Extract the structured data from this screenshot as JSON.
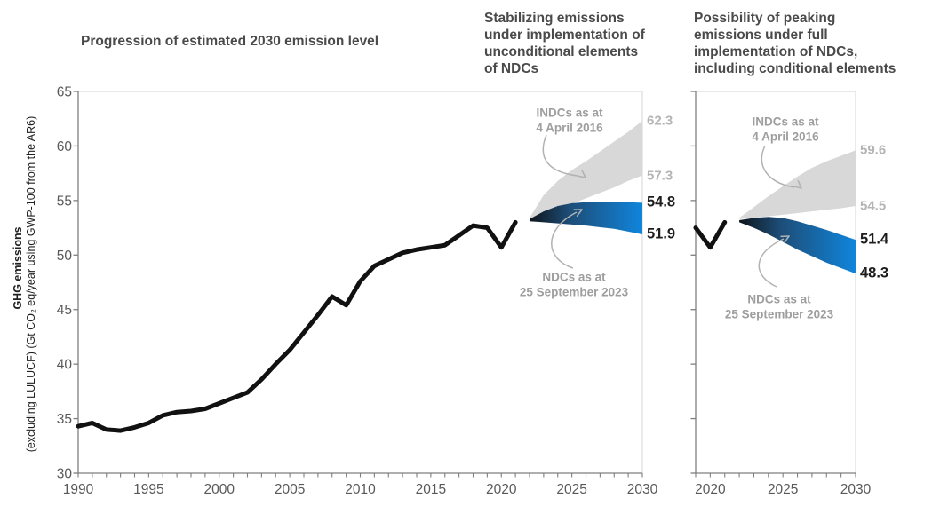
{
  "headers": {
    "main": "Progression of estimated 2030 emission level",
    "unconditional": "Stabilizing emissions\nunder implementation of\nunconditional elements\nof NDCs",
    "conditional": "Possibility of peaking\nemissions under full\nimplementation of NDCs,\nincluding conditional elements"
  },
  "y_axis": {
    "label_bold": "GHG emissions",
    "label_detail": "(excluding LULUCF) (Gt CO₂ eq/year using GWP-100 from the AR6)",
    "ticks": [
      30,
      35,
      40,
      45,
      50,
      55,
      60,
      65
    ],
    "range": [
      30,
      65
    ]
  },
  "colors": {
    "history_line": "#111111",
    "gray_fan": "#d8d8d8",
    "blue_gradient": [
      "#0e141a",
      "#1d4d77",
      "#1085dc"
    ],
    "axis": "#7f7f7f",
    "border_light": "#dcdcdc",
    "tick_label": "#595959",
    "header_text": "#4a4a4a",
    "annotation_text": "#9e9e9e",
    "value_label_gray": "#b4b4b4",
    "value_label_dark": "#1d1d1d",
    "arrow": "#b2b2b2"
  },
  "chart_data": {
    "type": "line",
    "ylabel": "GHG emissions (excluding LULUCF) (Gt CO₂ eq/year using GWP-100 from the AR6)",
    "ylim": [
      30,
      65
    ],
    "grid": false,
    "panels": [
      {
        "name": "progression-panel",
        "x_range": [
          1990,
          2030
        ],
        "x_tick_labels": [
          1990,
          1995,
          2000,
          2005,
          2010,
          2015,
          2020,
          2025,
          2030
        ],
        "show_y_tick_labels": true,
        "historical": {
          "start_year": 1990,
          "values": [
            34.3,
            34.6,
            34.0,
            33.9,
            34.2,
            34.6,
            35.3,
            35.6,
            35.7,
            35.9,
            36.4,
            36.9,
            37.4,
            38.6,
            40.0,
            41.3,
            42.9,
            44.5,
            46.2,
            45.4,
            47.6,
            49.0,
            49.6,
            50.2,
            50.5,
            50.7,
            50.9,
            51.8,
            52.7,
            52.5,
            50.7,
            53.0
          ]
        },
        "fan_years": [
          2022,
          2023,
          2024,
          2025,
          2026,
          2027,
          2028,
          2029,
          2030
        ],
        "fans": [
          {
            "name": "indc-2016",
            "style": "gray",
            "top": [
              53.4,
              55.5,
              56.8,
              57.8,
              58.6,
              59.5,
              60.4,
              61.3,
              62.3
            ],
            "bottom": [
              53.3,
              53.7,
              54.2,
              54.7,
              55.2,
              55.7,
              56.2,
              56.8,
              57.3
            ],
            "annotation": "INDCs as at\n4 April 2016",
            "end_labels": [
              {
                "text": "62.3",
                "value": 62.3,
                "style": "gray"
              },
              {
                "text": "57.3",
                "value": 57.3,
                "style": "gray"
              }
            ]
          },
          {
            "name": "ndc-2023",
            "style": "blue",
            "top": [
              53.3,
              54.0,
              54.5,
              54.75,
              54.85,
              54.9,
              54.9,
              54.85,
              54.8
            ],
            "bottom": [
              53.1,
              53.0,
              52.9,
              52.8,
              52.7,
              52.55,
              52.4,
              52.15,
              51.9
            ],
            "annotation": "NDCs as at\n25 September 2023",
            "end_labels": [
              {
                "text": "54.8",
                "value": 54.8,
                "style": "dark"
              },
              {
                "text": "51.9",
                "value": 51.9,
                "style": "dark"
              }
            ]
          }
        ]
      },
      {
        "name": "conditional-panel",
        "x_range": [
          2019,
          2030
        ],
        "x_tick_labels": [
          2020,
          2025,
          2030
        ],
        "show_y_tick_labels": false,
        "historical": {
          "start_year": 2019,
          "values": [
            52.5,
            50.7,
            53.0
          ]
        },
        "fan_years": [
          2022,
          2023,
          2024,
          2025,
          2026,
          2027,
          2028,
          2029,
          2030
        ],
        "fans": [
          {
            "name": "indc-2016",
            "style": "gray",
            "top": [
              53.4,
              54.4,
              55.4,
              56.3,
              57.2,
              58.0,
              58.6,
              59.1,
              59.6
            ],
            "bottom": [
              53.3,
              53.4,
              53.55,
              53.7,
              53.85,
              54.0,
              54.15,
              54.3,
              54.5
            ],
            "annotation": "INDCs as at\n4 April 2016",
            "end_labels": [
              {
                "text": "59.6",
                "value": 59.6,
                "style": "gray"
              },
              {
                "text": "54.5",
                "value": 54.5,
                "style": "gray"
              }
            ]
          },
          {
            "name": "ndc-2023",
            "style": "blue",
            "top": [
              53.2,
              53.4,
              53.5,
              53.4,
              53.1,
              52.7,
              52.3,
              51.85,
              51.4
            ],
            "bottom": [
              53.0,
              52.5,
              51.9,
              51.2,
              50.5,
              49.9,
              49.3,
              48.8,
              48.3
            ],
            "annotation": "NDCs as at\n25 September 2023",
            "end_labels": [
              {
                "text": "51.4",
                "value": 51.4,
                "style": "dark"
              },
              {
                "text": "48.3",
                "value": 48.3,
                "style": "dark"
              }
            ]
          }
        ]
      }
    ]
  }
}
